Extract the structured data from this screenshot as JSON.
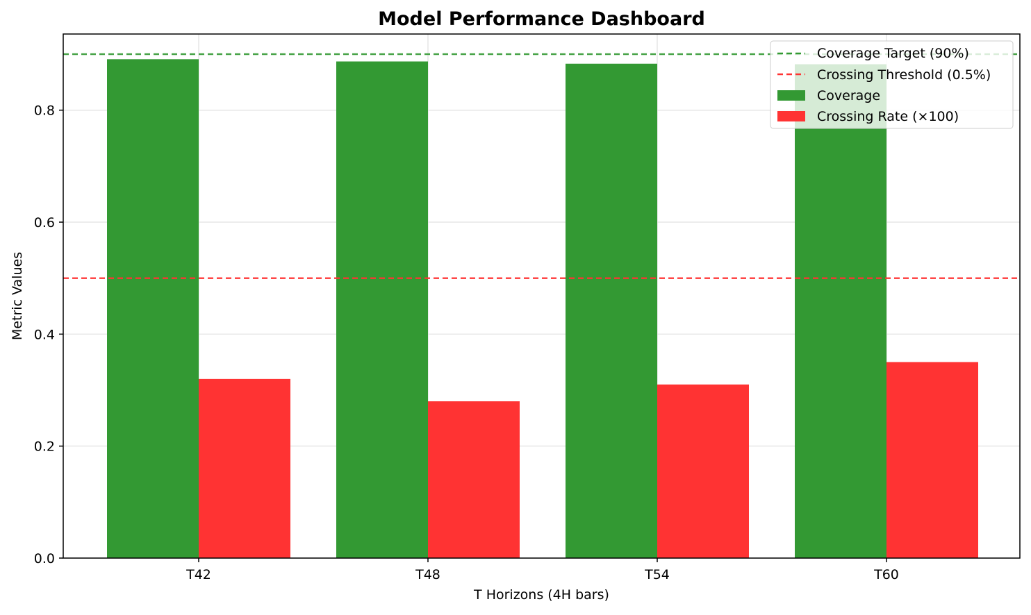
{
  "chart_data": {
    "type": "bar",
    "title": "Model Performance Dashboard",
    "xlabel": "T Horizons (4H bars)",
    "ylabel": "Metric Values",
    "categories": [
      "T42",
      "T48",
      "T54",
      "T60"
    ],
    "ylim": [
      0,
      0.936
    ],
    "yticks": [
      0.0,
      0.2,
      0.4,
      0.6,
      0.8
    ],
    "ytick_labels": [
      "0.0",
      "0.2",
      "0.4",
      "0.6",
      "0.8"
    ],
    "grid": true,
    "legend_position": "top-right",
    "series": [
      {
        "name": "Coverage",
        "values": [
          0.891,
          0.887,
          0.883,
          0.882
        ],
        "color": "#339933"
      },
      {
        "name": "Crossing Rate (×100)",
        "values": [
          0.32,
          0.28,
          0.31,
          0.35
        ],
        "color": "#ff3333"
      }
    ],
    "reference_lines": [
      {
        "name": "Coverage Target (90%)",
        "y": 0.9,
        "color": "#339933",
        "style": "dashed"
      },
      {
        "name": "Crossing Threshold (0.5%)",
        "y": 0.5,
        "color": "#ff3333",
        "style": "dashed"
      }
    ]
  }
}
